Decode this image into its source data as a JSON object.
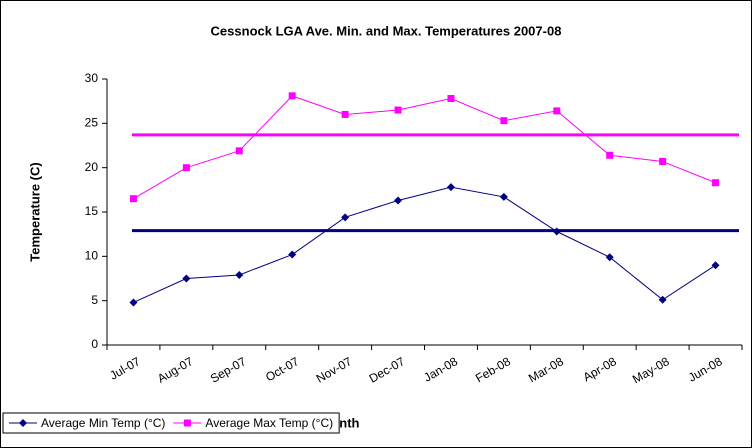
{
  "chart_data": {
    "type": "line",
    "title": "Cessnock LGA Ave. Min. and Max. Temperatures 2007-08",
    "x_label": "Month",
    "y_label": "Temperature (C)",
    "categories": [
      "Jul-07",
      "Aug-07",
      "Sep-07",
      "Oct-07",
      "Nov-07",
      "Dec-07",
      "Jan-08",
      "Feb-08",
      "Mar-08",
      "Apr-08",
      "May-08",
      "Jun-08"
    ],
    "series": [
      {
        "name": "Average Min Temp (°C)",
        "color": "#000080",
        "marker": "diamond",
        "values": [
          4.8,
          7.5,
          7.9,
          10.2,
          14.4,
          16.3,
          17.8,
          16.7,
          12.8,
          9.9,
          5.1,
          9.0
        ]
      },
      {
        "name": "Average Max Temp (°C)",
        "color": "#ff00ff",
        "marker": "square",
        "values": [
          16.5,
          20.0,
          21.9,
          28.1,
          26.0,
          26.5,
          27.8,
          25.3,
          26.4,
          21.4,
          20.7,
          18.3
        ]
      }
    ],
    "reference_lines": [
      {
        "value": 12.9,
        "color": "#000080"
      },
      {
        "value": 23.7,
        "color": "#ff00ff"
      }
    ],
    "ylim": [
      0,
      30
    ],
    "yticks": [
      0,
      5,
      10,
      15,
      20,
      25,
      30
    ],
    "legend": "bottom-left"
  }
}
